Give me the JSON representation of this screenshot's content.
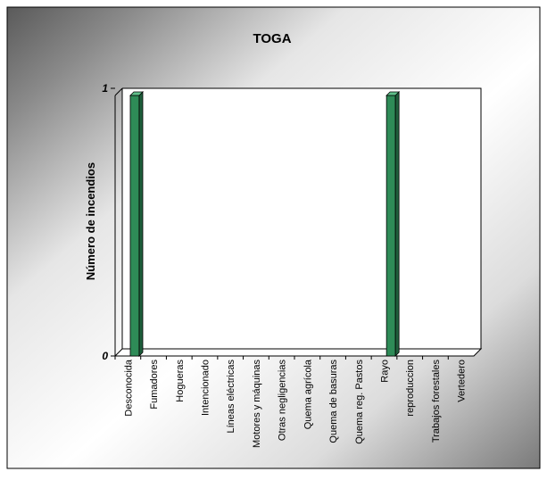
{
  "chart_data": {
    "type": "bar",
    "title": "TOGA",
    "xlabel": "",
    "ylabel": "Número de incendios",
    "ylim": [
      0,
      1
    ],
    "yticks": [
      "0",
      "1"
    ],
    "grid": false,
    "legend": "none",
    "categories": [
      "Desconocida",
      "Fumadores",
      "Hogueras",
      "Intencionado",
      "Líneas eléctricas",
      "Motores y máquinas",
      "Otras negligencias",
      "Quema agrícola",
      "Quema de basuras",
      "Quema reg. Pastos",
      "Rayo",
      "reproduccion",
      "Trabajos forestales",
      "Vertedero"
    ],
    "values": [
      1,
      0,
      0,
      0,
      0,
      0,
      0,
      0,
      0,
      0,
      1,
      0,
      0,
      0
    ],
    "colors": {
      "bar_front": "#2e8b57",
      "bar_side": "#1f5f3c",
      "bar_top": "#5fbf8a",
      "plot_edge": "#000000"
    }
  }
}
